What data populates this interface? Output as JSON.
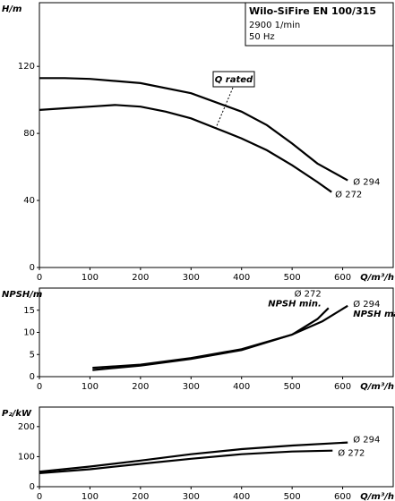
{
  "chart_data": [
    {
      "type": "line",
      "title": "Wilo-SiFire EN 100/315",
      "subtitle": [
        "2900 1/min",
        "50 Hz"
      ],
      "annotation": "Q rated",
      "x_label": "Q/m³/h",
      "y_label": "H/m",
      "xlim": [
        0,
        700
      ],
      "xticks": [
        0,
        100,
        200,
        300,
        400,
        500,
        600
      ],
      "ylim": [
        0,
        158
      ],
      "yticks": [
        0,
        40,
        80,
        120
      ],
      "series": [
        {
          "name": "Ø 294",
          "color": "#000000",
          "x": [
            0,
            50,
            100,
            200,
            300,
            400,
            450,
            500,
            550,
            610
          ],
          "values": [
            113,
            113,
            112.5,
            110,
            104,
            93,
            85,
            74,
            62,
            52
          ]
        },
        {
          "name": "Ø 272",
          "color": "#000000",
          "x": [
            0,
            50,
            100,
            150,
            200,
            250,
            300,
            350,
            400,
            450,
            500,
            550,
            578
          ],
          "values": [
            94,
            95,
            96,
            97,
            96,
            93,
            89,
            83,
            77,
            70,
            61,
            51,
            45
          ]
        }
      ]
    },
    {
      "type": "line",
      "x_label": "Q/m³/h",
      "y_label": "NPSH/m",
      "xlim": [
        0,
        700
      ],
      "xticks": [
        0,
        100,
        200,
        300,
        400,
        500,
        600
      ],
      "ylim": [
        0,
        20
      ],
      "yticks": [
        0,
        5,
        10,
        15
      ],
      "series": [
        {
          "name": "Ø 272",
          "note": "NPSH min.",
          "color": "#000000",
          "x": [
            105,
            200,
            300,
            400,
            500,
            550,
            572
          ],
          "values": [
            1.5,
            2.5,
            4,
            6,
            9.5,
            13,
            15.5
          ]
        },
        {
          "name": "Ø 294",
          "note": "NPSH max.",
          "color": "#000000",
          "x": [
            105,
            200,
            300,
            400,
            500,
            560,
            610
          ],
          "values": [
            2,
            2.7,
            4.2,
            6.2,
            9.5,
            12.5,
            16
          ]
        }
      ]
    },
    {
      "type": "line",
      "x_label": "Q/m³/h",
      "y_label": "P₂/kW",
      "xlim": [
        0,
        700
      ],
      "xticks": [
        0,
        100,
        200,
        300,
        400,
        500,
        600
      ],
      "ylim": [
        0,
        265
      ],
      "yticks": [
        0,
        100,
        200
      ],
      "series": [
        {
          "name": "Ø 294",
          "color": "#000000",
          "x": [
            0,
            100,
            200,
            300,
            400,
            500,
            610
          ],
          "values": [
            50,
            67,
            87,
            108,
            125,
            137,
            147
          ]
        },
        {
          "name": "Ø 272",
          "color": "#000000",
          "x": [
            0,
            100,
            200,
            300,
            400,
            500,
            580
          ],
          "values": [
            45,
            58,
            76,
            93,
            108,
            117,
            120
          ]
        }
      ]
    }
  ]
}
